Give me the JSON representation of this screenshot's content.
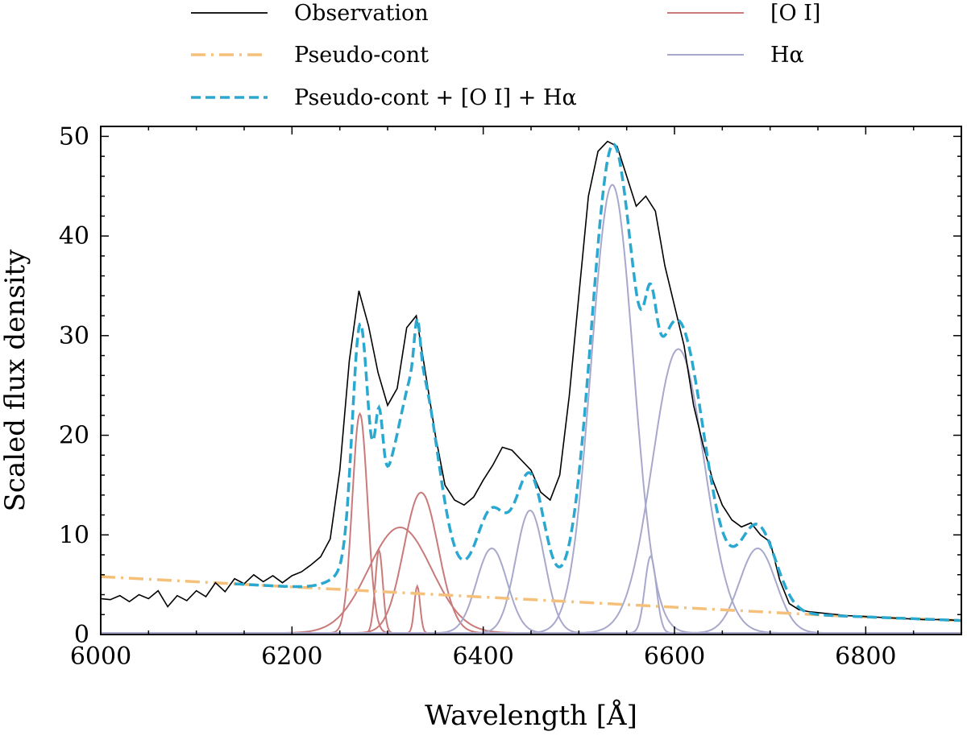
{
  "chart_data": {
    "type": "line",
    "xlabel": "Wavelength [Å]",
    "ylabel": "Scaled flux density",
    "xlim": [
      6000,
      6900
    ],
    "ylim": [
      0,
      51
    ],
    "xticks": [
      6000,
      6200,
      6400,
      6600,
      6800
    ],
    "yticks": [
      0,
      10,
      20,
      30,
      40,
      50
    ],
    "legend_position": "top",
    "colors": {
      "observation": "#000000",
      "pseudo": "#f4c07a",
      "fit": "#2ba8cf",
      "oi": "#c97a7a",
      "ha": "#a8a8cc"
    },
    "legend": [
      {
        "key": "observation",
        "label": "Observation"
      },
      {
        "key": "pseudo",
        "label": "Pseudo-cont"
      },
      {
        "key": "fit",
        "label": "Pseudo-cont + [O I] + Hα"
      },
      {
        "key": "oi",
        "label": "[O I]"
      },
      {
        "key": "ha",
        "label": "Hα"
      }
    ],
    "pseudo_continuum": {
      "x": [
        6000,
        6765,
        6900
      ],
      "y": [
        5.8,
        1.9,
        1.4
      ]
    },
    "components": {
      "oi": [
        {
          "center": 6271,
          "sigma": 8,
          "amp": 22
        },
        {
          "center": 6291,
          "sigma": 4,
          "amp": 8.3
        },
        {
          "center": 6313,
          "sigma": 33,
          "amp": 10.6
        },
        {
          "center": 6331,
          "sigma": 3,
          "amp": 4.7
        },
        {
          "center": 6335,
          "sigma": 18,
          "amp": 14.1
        }
      ],
      "ha": [
        {
          "center": 6409,
          "sigma": 16,
          "amp": 8.5
        },
        {
          "center": 6449,
          "sigma": 15,
          "amp": 12.3
        },
        {
          "center": 6535,
          "sigma": 22,
          "amp": 45
        },
        {
          "center": 6575,
          "sigma": 6,
          "amp": 7.7
        },
        {
          "center": 6604,
          "sigma": 27,
          "amp": 28.5
        },
        {
          "center": 6687,
          "sigma": 19,
          "amp": 8.5
        }
      ]
    },
    "observation": {
      "x": [
        6000,
        6010,
        6020,
        6030,
        6040,
        6050,
        6060,
        6070,
        6080,
        6090,
        6100,
        6110,
        6120,
        6130,
        6140,
        6150,
        6160,
        6170,
        6180,
        6190,
        6200,
        6210,
        6220,
        6230,
        6240,
        6250,
        6260,
        6270,
        6280,
        6290,
        6300,
        6310,
        6320,
        6330,
        6340,
        6350,
        6360,
        6370,
        6380,
        6390,
        6400,
        6410,
        6420,
        6430,
        6440,
        6450,
        6460,
        6470,
        6480,
        6490,
        6500,
        6510,
        6520,
        6530,
        6540,
        6550,
        6560,
        6570,
        6580,
        6590,
        6600,
        6610,
        6620,
        6630,
        6640,
        6650,
        6660,
        6670,
        6680,
        6690,
        6700,
        6710,
        6720,
        6730,
        6740,
        6750,
        6760,
        6780,
        6800,
        6820,
        6840,
        6860,
        6880,
        6900
      ],
      "y": [
        3.6,
        3.5,
        3.9,
        3.3,
        4.0,
        3.6,
        4.4,
        2.8,
        3.9,
        3.4,
        4.4,
        3.8,
        5.2,
        4.3,
        5.6,
        5.1,
        6.0,
        5.3,
        5.9,
        5.2,
        5.9,
        6.3,
        7.0,
        7.8,
        9.6,
        16.5,
        27.5,
        34.5,
        31.0,
        26.3,
        23.0,
        24.7,
        30.8,
        32.0,
        26.0,
        20.0,
        15.0,
        13.5,
        13.0,
        13.8,
        15.5,
        17.0,
        18.8,
        18.5,
        17.5,
        16.5,
        14.3,
        13.5,
        16.0,
        24.0,
        34.0,
        44.0,
        48.5,
        49.5,
        49.0,
        46.0,
        43.0,
        44.0,
        42.5,
        37.0,
        33.0,
        29.0,
        23.0,
        19.0,
        15.5,
        13.0,
        11.5,
        10.8,
        11.2,
        10.0,
        9.3,
        5.5,
        3.1,
        2.5,
        2.3,
        2.2,
        2.1,
        1.9,
        1.8,
        1.7,
        1.6,
        1.5,
        1.5,
        1.4
      ]
    }
  }
}
